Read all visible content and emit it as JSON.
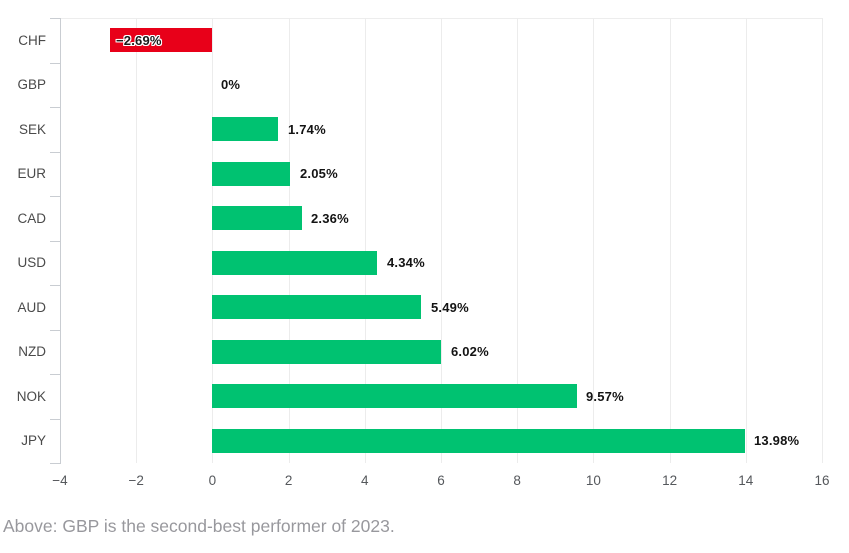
{
  "chart_data": {
    "type": "bar",
    "orientation": "horizontal",
    "title": "",
    "categories": [
      "CHF",
      "GBP",
      "SEK",
      "EUR",
      "CAD",
      "USD",
      "AUD",
      "NZD",
      "NOK",
      "JPY"
    ],
    "values": [
      -2.69,
      0,
      1.74,
      2.05,
      2.36,
      4.34,
      5.49,
      6.02,
      9.57,
      13.98
    ],
    "value_labels": [
      "−2.69%",
      "0%",
      "1.74%",
      "2.05%",
      "2.36%",
      "4.34%",
      "5.49%",
      "6.02%",
      "9.57%",
      "13.98%"
    ],
    "xlabel": "",
    "ylabel": "",
    "xlim": [
      -4,
      16
    ],
    "x_ticks": [
      -4,
      -2,
      0,
      2,
      4,
      6,
      8,
      10,
      12,
      14,
      16
    ],
    "x_tick_labels": [
      "−4",
      "−2",
      "0",
      "2",
      "4",
      "6",
      "8",
      "10",
      "12",
      "14",
      "16"
    ],
    "grid": true,
    "legend": false,
    "colors": {
      "positive_bar": "#00c271",
      "negative_bar": "#e80019",
      "value_label": "#131313",
      "category_label": "#4a4a4a",
      "tick_label": "#55585c",
      "gridline": "#ececec",
      "axis_line": "#c9cdd2"
    }
  },
  "caption": {
    "text": "Above: GBP is the second-best performer of 2023."
  }
}
